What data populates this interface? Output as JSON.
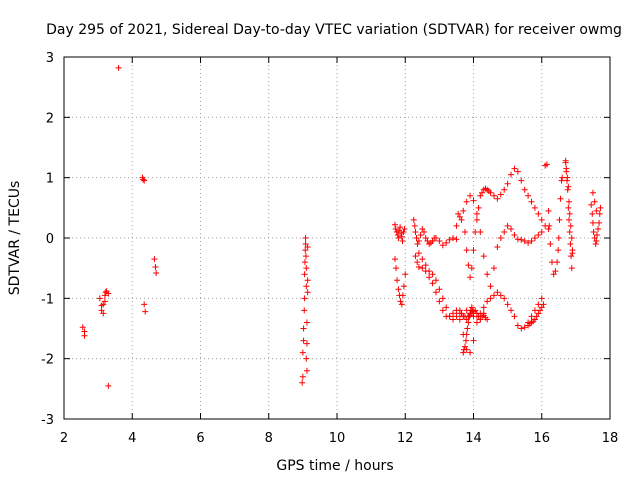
{
  "chart_data": {
    "type": "scatter",
    "title": "Day 295 of 2021, Sidereal Day-to-day VTEC variation (SDTVAR) for receiver owmg",
    "xlabel": "GPS time / hours",
    "ylabel": "SDTVAR / TECUs",
    "xlim": [
      2,
      18
    ],
    "ylim": [
      -3,
      3
    ],
    "xticks": [
      2,
      4,
      6,
      8,
      10,
      12,
      14,
      16,
      18
    ],
    "yticks": [
      -3,
      -2,
      -1,
      0,
      1,
      2,
      3
    ],
    "grid": true,
    "marker": "+",
    "series_color": "#ff0000",
    "series": [
      {
        "name": "SDTVAR",
        "x": [
          2.55,
          2.6,
          2.6,
          3.05,
          3.1,
          3.1,
          3.15,
          3.15,
          3.2,
          3.2,
          3.22,
          3.25,
          3.3,
          3.3,
          3.6,
          4.3,
          4.32,
          4.35,
          4.35,
          4.38,
          4.65,
          4.68,
          4.7,
          8.98,
          9.0,
          9.0,
          9.02,
          9.02,
          9.04,
          9.05,
          9.05,
          9.06,
          9.07,
          9.08,
          9.08,
          9.09,
          9.1,
          9.1,
          9.1,
          9.12,
          9.12,
          9.12,
          9.14,
          9.14,
          9.14,
          11.7,
          11.72,
          11.75,
          11.78,
          11.8,
          11.82,
          11.85,
          11.88,
          11.9,
          11.92,
          11.95,
          11.98,
          11.7,
          11.73,
          11.76,
          11.8,
          11.83,
          11.86,
          11.9,
          11.93,
          11.96,
          12.0,
          12.25,
          12.28,
          12.3,
          12.33,
          12.36,
          12.4,
          12.45,
          12.5,
          12.55,
          12.6,
          12.65,
          12.7,
          12.75,
          12.8,
          12.85,
          12.9,
          13.0,
          13.1,
          13.2,
          13.3,
          13.4,
          13.5,
          12.3,
          12.35,
          12.4,
          12.5,
          12.6,
          12.7,
          12.8,
          12.9,
          13.0,
          13.1,
          13.2,
          13.3,
          13.4,
          13.5,
          13.6,
          13.7,
          13.8,
          13.9,
          14.0,
          14.1,
          14.2,
          14.3,
          14.4,
          14.5,
          14.6,
          14.7,
          14.8,
          14.9,
          15.0,
          15.1,
          15.2,
          15.3,
          15.4,
          15.5,
          15.6,
          15.7,
          15.8,
          15.9,
          16.0,
          12.4,
          12.5,
          12.6,
          12.7,
          12.8,
          12.9,
          13.0,
          13.1,
          13.2,
          13.3,
          13.4,
          13.5,
          13.6,
          13.7,
          13.8,
          13.9,
          14.0,
          14.1,
          14.2,
          14.3,
          13.5,
          13.6,
          13.7,
          13.8,
          13.9,
          14.0,
          14.1,
          14.2,
          14.3,
          14.4,
          14.5,
          14.6,
          14.7,
          14.8,
          14.9,
          15.0,
          15.1,
          15.2,
          15.3,
          15.4,
          15.5,
          15.6,
          15.7,
          15.8,
          15.9,
          16.0,
          13.55,
          13.65,
          13.75,
          13.8,
          13.85,
          13.9,
          13.95,
          14.0,
          14.05,
          14.1,
          14.15,
          14.2,
          14.25,
          14.3,
          14.35,
          14.4,
          14.45,
          14.5,
          14.6,
          14.7,
          14.8,
          14.9,
          15.0,
          15.1,
          15.2,
          15.3,
          15.4,
          15.5,
          15.6,
          15.7,
          15.8,
          15.9,
          16.0,
          16.1,
          16.2,
          13.6,
          13.65,
          13.7,
          13.75,
          13.8,
          13.85,
          13.9,
          13.95,
          14.0,
          14.05,
          14.1,
          14.15,
          14.2,
          14.25,
          14.3,
          14.35,
          14.4,
          13.7,
          13.72,
          13.75,
          13.78,
          13.8,
          13.82,
          13.85,
          13.88,
          13.9,
          13.92,
          13.95,
          13.98,
          14.0,
          15.6,
          15.65,
          15.7,
          15.75,
          15.8,
          15.85,
          15.9,
          15.95,
          16.0,
          16.05,
          16.1,
          16.15,
          16.2,
          16.22,
          16.25,
          16.3,
          16.35,
          16.4,
          16.45,
          16.48,
          16.5,
          16.52,
          16.55,
          16.58,
          16.6,
          16.7,
          16.72,
          16.74,
          16.76,
          16.78,
          16.8,
          16.82,
          16.84,
          16.86,
          16.88,
          16.9,
          16.7,
          16.72,
          16.75,
          16.78,
          16.8,
          16.82,
          16.85,
          16.88,
          16.9,
          17.45,
          17.48,
          17.5,
          17.52,
          17.55,
          17.58,
          17.6,
          17.62,
          17.65,
          17.68,
          17.7,
          17.72,
          17.5,
          17.55,
          17.6
        ],
        "y": [
          -1.48,
          -1.55,
          -1.62,
          -1.0,
          -1.12,
          -1.2,
          -1.25,
          -1.1,
          -1.05,
          -0.95,
          -0.9,
          -0.88,
          -0.92,
          -2.45,
          2.82,
          1.0,
          0.97,
          0.95,
          -1.1,
          -1.22,
          -0.35,
          -0.48,
          -0.58,
          -2.4,
          -2.3,
          -1.9,
          -1.7,
          -1.5,
          -1.2,
          -1.0,
          -0.6,
          -0.4,
          -0.2,
          -0.1,
          0.0,
          -0.3,
          -0.5,
          -0.8,
          -2.0,
          -2.2,
          -1.75,
          -1.4,
          -0.9,
          -0.7,
          -0.15,
          0.22,
          0.15,
          0.1,
          0.05,
          0.0,
          0.12,
          0.18,
          0.08,
          0.02,
          -0.05,
          0.1,
          0.15,
          -0.35,
          -0.5,
          -0.7,
          -0.85,
          -0.95,
          -1.05,
          -1.1,
          -0.95,
          -0.8,
          -0.6,
          0.3,
          0.2,
          0.1,
          0.0,
          -0.1,
          -0.05,
          0.05,
          0.15,
          0.1,
          0.0,
          -0.05,
          -0.1,
          -0.08,
          -0.05,
          0.0,
          0.0,
          -0.05,
          -0.12,
          -0.08,
          -0.03,
          0.0,
          -0.02,
          -0.3,
          -0.4,
          -0.48,
          -0.5,
          -0.55,
          -0.65,
          -0.75,
          -0.9,
          -1.05,
          -1.2,
          -1.3,
          -1.3,
          -1.25,
          -1.2,
          -1.35,
          -1.6,
          -1.85,
          -1.9,
          -1.7,
          -1.4,
          -1.25,
          -1.15,
          -1.05,
          -1.0,
          -0.95,
          -0.9,
          -0.95,
          -1.0,
          -1.1,
          -1.2,
          -1.3,
          -1.45,
          -1.5,
          -1.48,
          -1.4,
          -1.3,
          -1.2,
          -1.1,
          -1.0,
          -0.25,
          -0.35,
          -0.45,
          -0.55,
          -0.6,
          -0.7,
          -0.85,
          -1.0,
          -1.15,
          -1.3,
          -1.35,
          -1.3,
          -1.25,
          -1.3,
          -1.2,
          -1.25,
          -1.3,
          -1.3,
          -1.35,
          -1.25,
          0.2,
          0.35,
          0.45,
          0.6,
          0.7,
          0.62,
          0.4,
          0.1,
          -0.3,
          -0.6,
          -0.8,
          -0.5,
          -0.15,
          0.0,
          0.1,
          0.2,
          0.15,
          0.05,
          -0.02,
          -0.03,
          -0.05,
          -0.08,
          -0.05,
          0.0,
          0.05,
          0.1,
          0.4,
          0.3,
          0.1,
          -0.2,
          -0.45,
          -0.65,
          -0.5,
          -0.2,
          0.1,
          0.3,
          0.5,
          0.7,
          0.75,
          0.8,
          0.82,
          0.8,
          0.78,
          0.75,
          0.7,
          0.65,
          0.72,
          0.8,
          0.9,
          1.05,
          1.15,
          1.1,
          0.95,
          0.8,
          0.7,
          0.6,
          0.5,
          0.4,
          0.3,
          0.2,
          0.15,
          -1.2,
          -1.25,
          -1.3,
          -1.3,
          -1.35,
          -1.3,
          -1.28,
          -1.25,
          -1.22,
          -1.2,
          -1.25,
          -1.3,
          -1.35,
          -1.3,
          -1.28,
          -1.32,
          -1.35,
          -1.9,
          -1.85,
          -1.8,
          -1.7,
          -1.6,
          -1.5,
          -1.4,
          -1.3,
          -1.25,
          -1.2,
          -1.15,
          -1.2,
          -1.25,
          -1.45,
          -1.42,
          -1.4,
          -1.38,
          -1.35,
          -1.3,
          -1.25,
          -1.2,
          -1.15,
          -1.1,
          1.2,
          1.22,
          0.45,
          0.2,
          -0.1,
          -0.4,
          -0.6,
          -0.55,
          -0.4,
          -0.2,
          0.0,
          0.3,
          0.65,
          0.95,
          1.0,
          1.25,
          1.1,
          0.95,
          0.8,
          0.5,
          0.3,
          0.1,
          -0.1,
          -0.3,
          -0.5,
          -0.25,
          1.28,
          1.15,
          1.0,
          0.85,
          0.6,
          0.4,
          0.2,
          0.0,
          -0.2,
          0.55,
          0.4,
          0.25,
          0.1,
          0.0,
          -0.1,
          -0.05,
          0.05,
          0.15,
          0.25,
          0.4,
          0.5,
          0.75,
          0.6,
          0.45
        ]
      }
    ]
  }
}
